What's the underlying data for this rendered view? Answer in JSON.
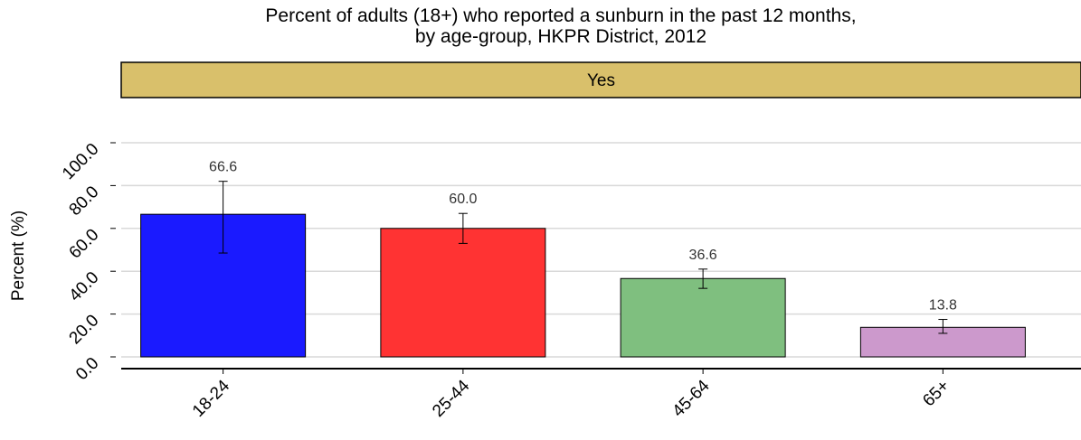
{
  "chart_data": {
    "type": "bar",
    "title": "Percent of adults (18+) who reported a sunburn in the past 12 months,",
    "subtitle": "by age-group, HKPR District, 2012",
    "panel_label": "Yes",
    "xlabel": "",
    "ylabel": "Percent (%)",
    "ylim": [
      0,
      120
    ],
    "yticks": [
      "0.0",
      "20.0",
      "40.0",
      "60.0",
      "80.0",
      "100.0"
    ],
    "grid": true,
    "categories": [
      "18-24",
      "25-44",
      "45-64",
      "65+"
    ],
    "values": [
      66.6,
      60.0,
      36.6,
      13.8
    ],
    "value_labels": [
      "66.6",
      "60.0",
      "36.6",
      "13.8"
    ],
    "error_low": [
      48.5,
      53.0,
      32.0,
      11.0
    ],
    "error_high": [
      82.0,
      67.0,
      41.0,
      17.5
    ],
    "colors": [
      "#1a1aff",
      "#ff3333",
      "#7fbf7f",
      "#cc99cc"
    ],
    "strip_color": "#d9c06b"
  }
}
